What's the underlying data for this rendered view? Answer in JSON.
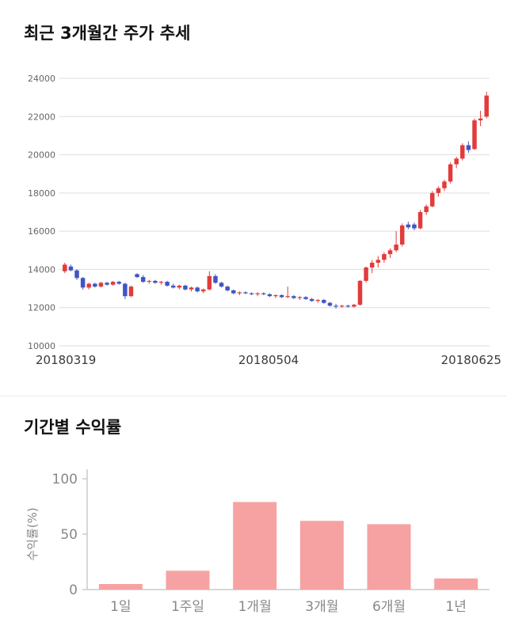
{
  "price_section": {
    "title": "최근 3개월간 주가 추세"
  },
  "returns_section": {
    "title": "기간별 수익률"
  },
  "chart_data": [
    {
      "type": "candlestick",
      "title": "최근 3개월간 주가 추세",
      "ylim": [
        10000,
        24000
      ],
      "yticks": [
        10000,
        12000,
        14000,
        16000,
        18000,
        20000,
        22000,
        24000
      ],
      "xtick_labels": [
        "20180319",
        "20180504",
        "20180625"
      ],
      "colors": {
        "up": "#e23b3b",
        "down": "#3f55c4",
        "grid": "#dddddd",
        "tick_text": "#666666"
      },
      "candles_ohlc": [
        [
          13900,
          14350,
          13800,
          14250
        ],
        [
          14150,
          14250,
          13900,
          13950
        ],
        [
          13950,
          14000,
          13450,
          13550
        ],
        [
          13550,
          13600,
          12950,
          13050
        ],
        [
          13050,
          13300,
          12950,
          13250
        ],
        [
          13250,
          13300,
          13050,
          13100
        ],
        [
          13100,
          13350,
          13050,
          13300
        ],
        [
          13300,
          13350,
          13150,
          13200
        ],
        [
          13200,
          13400,
          13150,
          13350
        ],
        [
          13350,
          13400,
          13200,
          13250
        ],
        [
          13250,
          13300,
          12450,
          12600
        ],
        [
          12600,
          13150,
          12550,
          13100
        ],
        [
          13750,
          13800,
          13550,
          13600
        ],
        [
          13600,
          13700,
          13300,
          13350
        ],
        [
          13350,
          13450,
          13250,
          13400
        ],
        [
          13400,
          13450,
          13250,
          13300
        ],
        [
          13300,
          13400,
          13200,
          13350
        ],
        [
          13350,
          13400,
          13100,
          13150
        ],
        [
          13150,
          13250,
          13000,
          13050
        ],
        [
          13050,
          13200,
          12950,
          13150
        ],
        [
          13150,
          13200,
          12900,
          12950
        ],
        [
          12950,
          13100,
          12850,
          13050
        ],
        [
          13050,
          13100,
          12800,
          12850
        ],
        [
          12850,
          13000,
          12750,
          12950
        ],
        [
          12950,
          13900,
          12900,
          13650
        ],
        [
          13650,
          13750,
          13250,
          13300
        ],
        [
          13300,
          13350,
          13050,
          13100
        ],
        [
          13100,
          13150,
          12850,
          12900
        ],
        [
          12900,
          12950,
          12700,
          12750
        ],
        [
          12750,
          12850,
          12650,
          12800
        ],
        [
          12800,
          12850,
          12700,
          12750
        ],
        [
          12750,
          12800,
          12650,
          12700
        ],
        [
          12700,
          12800,
          12600,
          12750
        ],
        [
          12750,
          12800,
          12650,
          12700
        ],
        [
          12700,
          12750,
          12550,
          12600
        ],
        [
          12600,
          12700,
          12500,
          12650
        ],
        [
          12650,
          12700,
          12500,
          12550
        ],
        [
          12550,
          13100,
          12500,
          12600
        ],
        [
          12600,
          12650,
          12450,
          12500
        ],
        [
          12500,
          12600,
          12400,
          12550
        ],
        [
          12550,
          12600,
          12400,
          12450
        ],
        [
          12450,
          12500,
          12300,
          12350
        ],
        [
          12350,
          12450,
          12250,
          12400
        ],
        [
          12400,
          12450,
          12200,
          12250
        ],
        [
          12250,
          12300,
          12050,
          12100
        ],
        [
          12100,
          12200,
          11950,
          12050
        ],
        [
          12050,
          12150,
          12000,
          12100
        ],
        [
          12100,
          12150,
          12000,
          12050
        ],
        [
          12050,
          12200,
          12000,
          12150
        ],
        [
          12150,
          13450,
          12100,
          13400
        ],
        [
          13400,
          14150,
          13300,
          14100
        ],
        [
          14100,
          14500,
          13800,
          14350
        ],
        [
          14350,
          14700,
          14100,
          14500
        ],
        [
          14500,
          14900,
          14350,
          14800
        ],
        [
          14800,
          15100,
          14600,
          15000
        ],
        [
          15000,
          16000,
          14900,
          15300
        ],
        [
          15300,
          16400,
          15200,
          16300
        ],
        [
          16350,
          16500,
          16100,
          16200
        ],
        [
          16350,
          16450,
          16050,
          16150
        ],
        [
          16150,
          17100,
          16100,
          17000
        ],
        [
          17000,
          17400,
          16850,
          17300
        ],
        [
          17300,
          18100,
          17250,
          18000
        ],
        [
          18000,
          18350,
          17800,
          18250
        ],
        [
          18250,
          18700,
          18100,
          18600
        ],
        [
          18600,
          19600,
          18500,
          19500
        ],
        [
          19500,
          19900,
          19300,
          19800
        ],
        [
          19800,
          20600,
          19700,
          20500
        ],
        [
          20500,
          20700,
          20100,
          20250
        ],
        [
          20300,
          21900,
          20250,
          21800
        ],
        [
          21800,
          22300,
          21500,
          21900
        ],
        [
          22000,
          23300,
          21900,
          23100
        ]
      ]
    },
    {
      "type": "bar",
      "ylabel": "수익률(%)",
      "categories": [
        "1일",
        "1주일",
        "1개월",
        "3개월",
        "6개월",
        "1년"
      ],
      "values": [
        5,
        17,
        79,
        62,
        59,
        10
      ],
      "ylim": [
        0,
        100
      ],
      "yticks": [
        0,
        50,
        100
      ],
      "colors": {
        "bar": "#f7a2a2",
        "axis": "#cccccc",
        "text": "#888888"
      }
    }
  ]
}
